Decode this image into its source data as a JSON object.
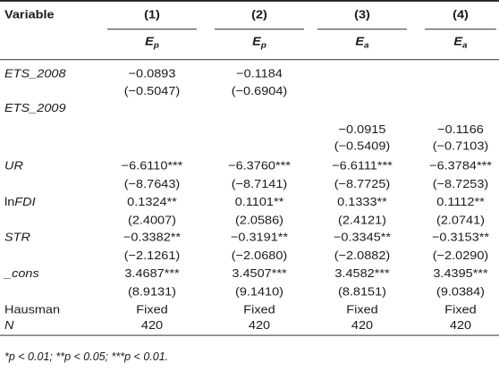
{
  "header": {
    "variable_label": "Variable",
    "columns": [
      {
        "num": "(1)",
        "dep_base": "E",
        "dep_sub": "p"
      },
      {
        "num": "(2)",
        "dep_base": "E",
        "dep_sub": "p"
      },
      {
        "num": "(3)",
        "dep_base": "E",
        "dep_sub": "a"
      },
      {
        "num": "(4)",
        "dep_base": "E",
        "dep_sub": "a"
      }
    ]
  },
  "rows": [
    {
      "name": "ETS_2008",
      "coef": [
        "−0.0893",
        "−0.1184",
        "",
        ""
      ],
      "t": [
        "(−0.5047)",
        "(−0.6904)",
        "",
        ""
      ]
    },
    {
      "name": "ETS_2009",
      "coef": [
        "",
        "",
        "−0.0915",
        "−0.1166"
      ],
      "t": [
        "",
        "",
        "(−0.5409)",
        "(−0.7103)"
      ]
    },
    {
      "name": "UR",
      "coef": [
        "−6.6110***",
        "−6.3760***",
        "−6.6111***",
        "−6.3784***"
      ],
      "t": [
        "(−8.7643)",
        "(−8.7141)",
        "(−8.7725)",
        "(−8.7253)"
      ]
    },
    {
      "name_prefix": "ln",
      "name": "FDI",
      "coef": [
        "0.1324**",
        "0.1101**",
        "0.1333**",
        "0.1112**"
      ],
      "t": [
        "(2.4007)",
        "(2.0586)",
        "(2.4121)",
        "(2.0741)"
      ]
    },
    {
      "name": "STR",
      "coef": [
        "−0.3382**",
        "−0.3191**",
        "−0.3345**",
        "−0.3153**"
      ],
      "t": [
        "(−2.1261)",
        "(−2.0680)",
        "(−2.0882)",
        "(−2.0290)"
      ]
    },
    {
      "name": "_cons",
      "coef": [
        "3.4687***",
        "3.4507***",
        "3.4582***",
        "3.4395***"
      ],
      "t": [
        "(8.9131)",
        "(9.1410)",
        "(8.8151)",
        "(9.0384)"
      ]
    }
  ],
  "hausman": {
    "name": "Hausman",
    "values": [
      "Fixed",
      "Fixed",
      "Fixed",
      "Fixed"
    ]
  },
  "n_row": {
    "name": "N",
    "values": [
      "420",
      "420",
      "420",
      "420"
    ]
  },
  "footnote": "*p < 0.01; **p < 0.05; ***p < 0.01."
}
